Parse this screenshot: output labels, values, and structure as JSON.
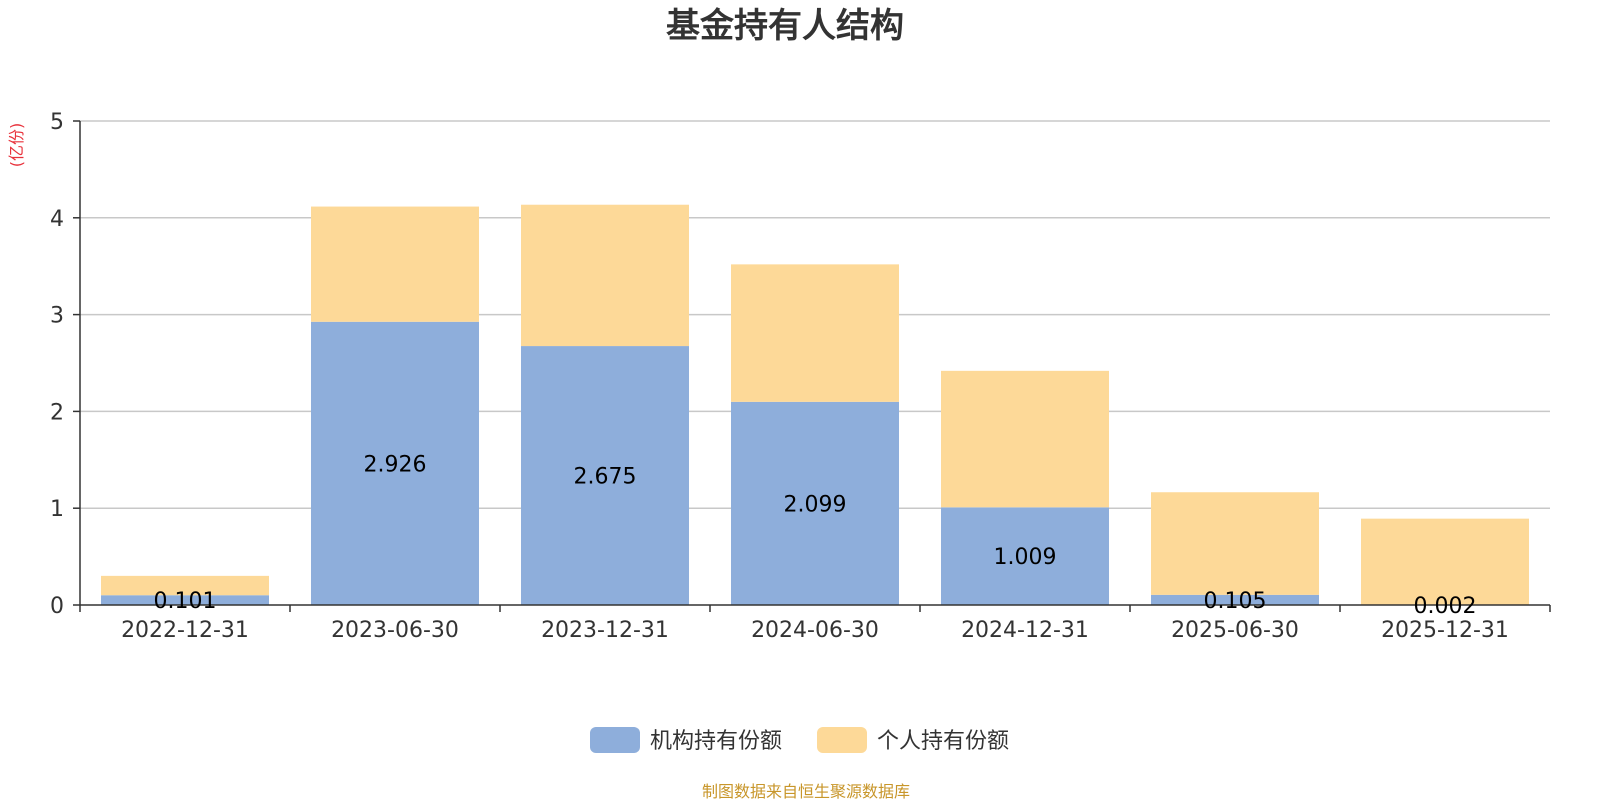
{
  "chart_data": {
    "type": "bar",
    "stacked": true,
    "title": "基金持有人结构",
    "ylabel": "(亿份)",
    "ylim": [
      0,
      5
    ],
    "yticks": [
      0,
      1,
      2,
      3,
      4,
      5
    ],
    "categories": [
      "2022-12-31",
      "2023-06-30",
      "2023-12-31",
      "2024-06-30",
      "2024-12-31",
      "2025-06-30",
      "2025-12-31"
    ],
    "series": [
      {
        "name": "机构持有份额",
        "color": "#8eaedb",
        "values": [
          0.101,
          2.926,
          2.675,
          2.099,
          1.009,
          0.105,
          0.002
        ],
        "labels": [
          "0.101",
          "2.926",
          "2.675",
          "2.099",
          "1.009",
          "0.105",
          "0.002"
        ]
      },
      {
        "name": "个人持有份额",
        "color": "#fdd998",
        "values": [
          0.2,
          1.19,
          1.46,
          1.42,
          1.41,
          1.06,
          0.89
        ]
      }
    ],
    "grid": true,
    "legend_position": "bottom-center"
  },
  "colors": {
    "unit_label": "#e8323c",
    "source": "#c8962a",
    "grid": "#c8c8c8",
    "axis": "#333333"
  },
  "source_text": "制图数据来自恒生聚源数据库"
}
